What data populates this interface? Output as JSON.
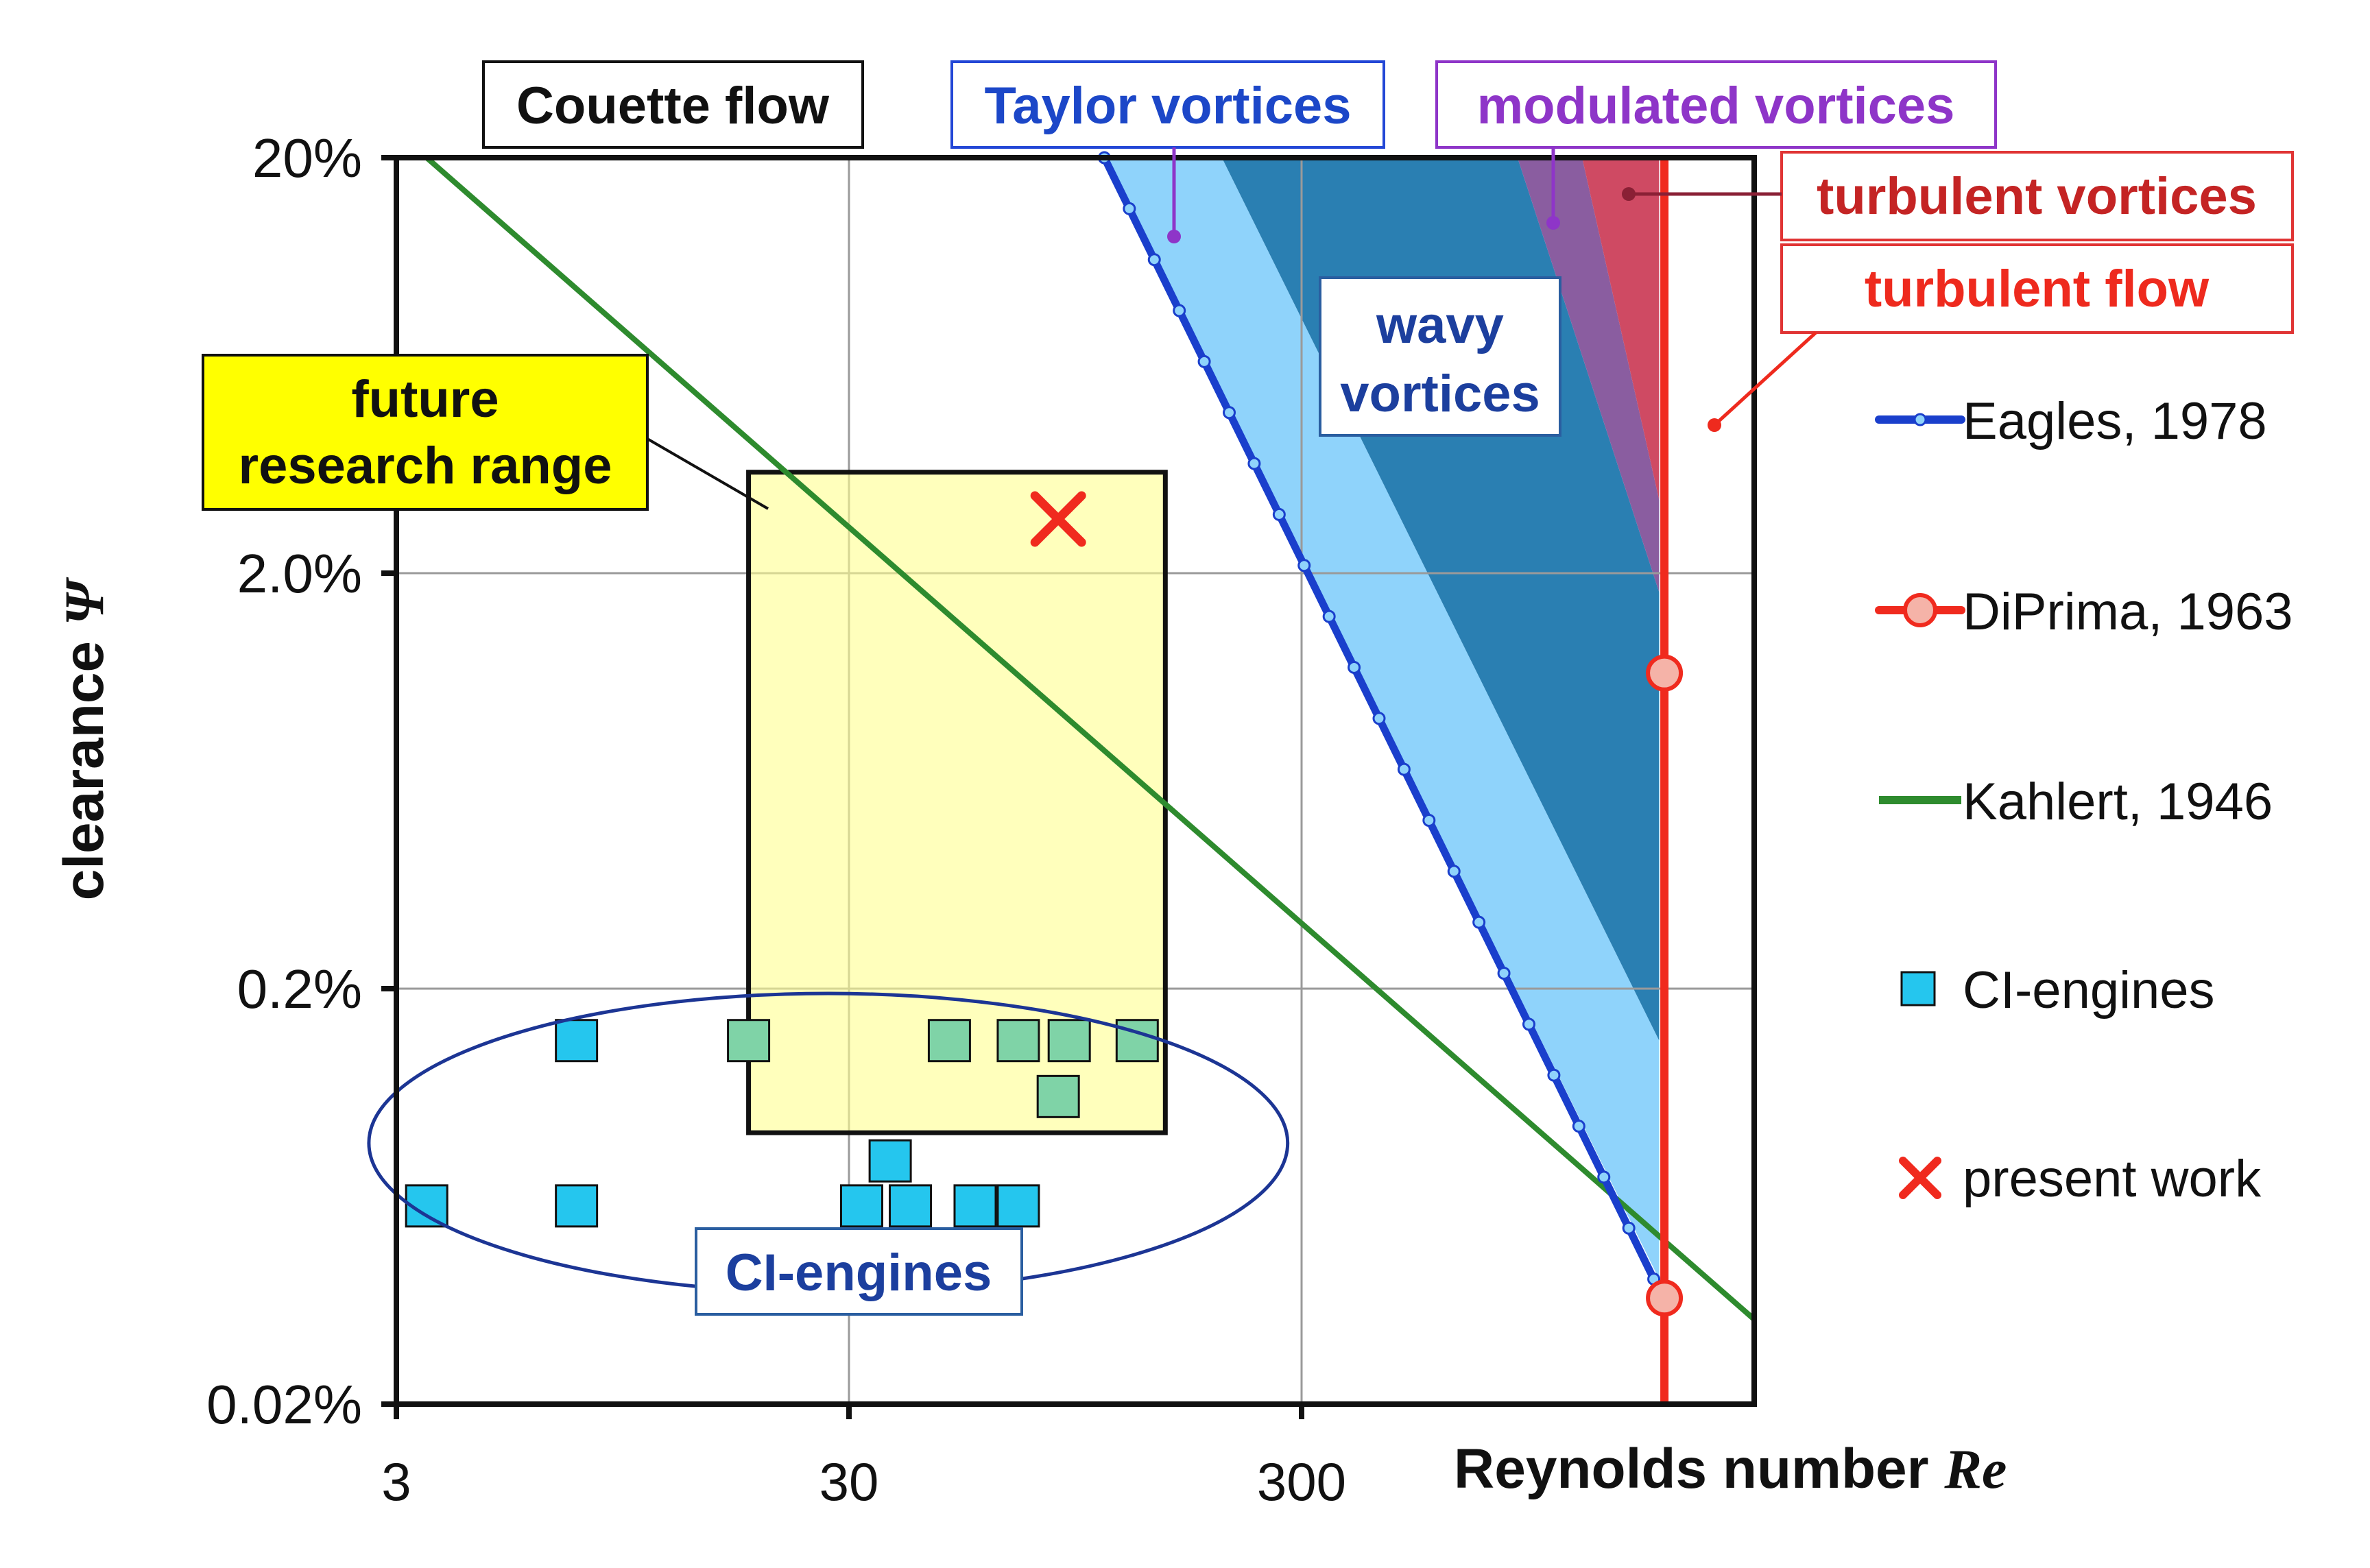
{
  "chart_data": {
    "type": "scatter",
    "title": "",
    "xlabel": "Reynolds number ",
    "xlabel_italic": "Re",
    "ylabel": "clearance ",
    "ylabel_italic": "Ψ",
    "x_scale": "log",
    "y_scale": "log",
    "xlim": [
      3,
      3000
    ],
    "ylim": [
      0.02,
      20
    ],
    "x_ticks": [
      3,
      30,
      300
    ],
    "x_tick_labels": [
      "3",
      "30",
      "300"
    ],
    "y_ticks": [
      0.02,
      0.2,
      2.0,
      20
    ],
    "y_tick_labels": [
      "0.02%",
      "0.2%",
      "2.0%",
      "20%"
    ],
    "grid": true,
    "legend_position": "right",
    "legend": [
      {
        "label": "Eagles, 1978",
        "marker": "line-dot",
        "color": "#1a3fcc"
      },
      {
        "label": "DiPrima, 1963",
        "marker": "line-circle",
        "color": "#f02a1e"
      },
      {
        "label": "Kahlert, 1946",
        "marker": "line",
        "color": "#2e8b2e"
      },
      {
        "label": "CI-engines",
        "marker": "square",
        "color": "#25c6ee"
      },
      {
        "label": "present work",
        "marker": "x",
        "color": "#f02a1e"
      }
    ],
    "series": [
      {
        "name": "Eagles, 1978",
        "color": "#1a3fcc",
        "points": [
          [
            110,
            20
          ],
          [
            1800,
            0.04
          ]
        ]
      },
      {
        "name": "DiPrima, 1963",
        "color": "#f02a1e",
        "x_constant": 1900,
        "markers": [
          [
            1900,
            1.15
          ],
          [
            1900,
            0.036
          ]
        ]
      },
      {
        "name": "Kahlert, 1946",
        "color": "#2e8b2e",
        "points": [
          [
            3.5,
            20
          ],
          [
            3000,
            0.032
          ]
        ]
      },
      {
        "name": "CI-engines",
        "color": "#25c6ee",
        "points": [
          [
            3.5,
            0.06
          ],
          [
            7.5,
            0.15
          ],
          [
            7.5,
            0.06
          ],
          [
            18,
            0.15
          ],
          [
            32,
            0.06
          ],
          [
            37,
            0.077
          ],
          [
            41,
            0.06
          ],
          [
            50,
            0.15
          ],
          [
            57,
            0.06
          ],
          [
            71,
            0.15
          ],
          [
            71,
            0.06
          ],
          [
            87,
            0.11
          ],
          [
            92,
            0.15
          ],
          [
            130,
            0.15
          ]
        ]
      },
      {
        "name": "present work",
        "color": "#f02a1e",
        "points": [
          [
            87,
            2.7
          ]
        ]
      }
    ],
    "regions": [
      {
        "name": "Taylor vortices",
        "color": "#8fd3fb",
        "polygon": [
          [
            110,
            20
          ],
          [
            200,
            20
          ],
          [
            1850,
            0.15
          ],
          [
            1850,
            0.04
          ]
        ]
      },
      {
        "name": "wavy vortices",
        "color": "#2a7fb2",
        "polygon": [
          [
            200,
            20
          ],
          [
            900,
            20
          ],
          [
            1850,
            1.8
          ],
          [
            1850,
            0.15
          ]
        ]
      },
      {
        "name": "modulated vortices",
        "color": "#8a5da0",
        "polygon": [
          [
            900,
            20
          ],
          [
            1250,
            20
          ],
          [
            1850,
            3.0
          ],
          [
            1850,
            1.8
          ]
        ]
      },
      {
        "name": "turbulent vortices",
        "color": "#cf4a63",
        "polygon": [
          [
            1250,
            20
          ],
          [
            1850,
            20
          ],
          [
            1850,
            3.0
          ]
        ]
      }
    ],
    "future_research_range": {
      "x": [
        18,
        150
      ],
      "y": [
        0.09,
        3.5
      ]
    },
    "ci_engine_ellipse": {
      "center": [
        27,
        0.085
      ],
      "x_range": [
        2.8,
        300
      ],
      "y_range": [
        0.04,
        0.21
      ]
    },
    "annotations": {
      "couette": "Couette flow",
      "taylor": "Taylor vortices",
      "modulated": "modulated vortices",
      "turb_vort": "turbulent vortices",
      "turb_flow": "turbulent flow",
      "wavy_1": "wavy",
      "wavy_2": "vortices",
      "future_1": "future",
      "future_2": "research range",
      "ci": "CI-engines"
    }
  }
}
